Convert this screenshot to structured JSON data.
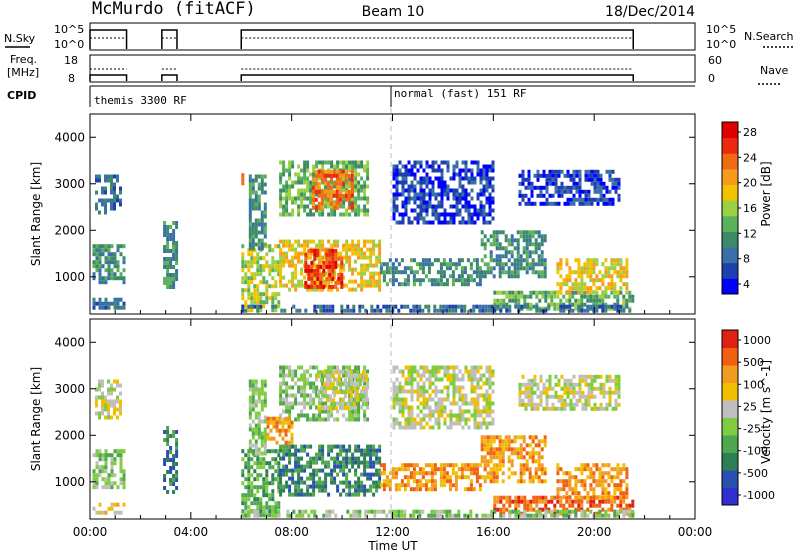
{
  "header": {
    "radar": "McMurdo (fitACF)",
    "beam": "Beam 10",
    "date": "18/Dec/2014"
  },
  "labels": {
    "nsky": "N.Sky",
    "nsearch": "N.Search",
    "freq_line1": "Freq.",
    "freq_line2": "[MHz]",
    "nave": "Nave",
    "cpid": "CPID",
    "mode1": "themis 3300 RF",
    "mode2": "normal (fast) 151 RF",
    "xlabel": "Time UT"
  },
  "noise_axis": {
    "left_top": "10^5",
    "left_bottom": "10^0",
    "right_top": "10^5",
    "right_bottom": "10^0"
  },
  "freq_axis": {
    "left_ticks": [
      "18",
      "8"
    ],
    "right_ticks": [
      "60",
      "0"
    ]
  },
  "colors": {
    "power": [
      "#0000ff",
      "#1f3fb0",
      "#3a70a8",
      "#3d8a6a",
      "#5bb05b",
      "#9cd043",
      "#f2c200",
      "#f79b1a",
      "#f26a14",
      "#ec2a10",
      "#e00000"
    ],
    "velocity": [
      "#3030d0",
      "#2850b0",
      "#2e7f55",
      "#4ea74e",
      "#7fcc40",
      "#bfbfbf",
      "#f0c000",
      "#f39a20",
      "#f06010",
      "#e02010"
    ]
  },
  "chart_data": [
    {
      "type": "heatmap",
      "ylabel": "Slant Range [km]",
      "xlabel": "Time UT",
      "xlim_hours": [
        0,
        24
      ],
      "ylim": [
        200,
        4500
      ],
      "x_ticks": [
        "00:00",
        "04:00",
        "08:00",
        "12:00",
        "16:00",
        "20:00",
        "00:00"
      ],
      "y_ticks": [
        1000,
        2000,
        3000,
        4000
      ],
      "colorbar_label": "Power [dB]",
      "colorbar_ticks": [
        "28",
        "24",
        "20",
        "16",
        "12",
        "8",
        "4"
      ],
      "regions": [
        {
          "t0": 0.1,
          "t1": 1.4,
          "r0": 900,
          "r1": 1700,
          "level": 3
        },
        {
          "t0": 0.1,
          "t1": 1.4,
          "r0": 300,
          "r1": 550,
          "level": 2
        },
        {
          "t0": 0.2,
          "t1": 1.2,
          "r0": 2400,
          "r1": 3200,
          "level": 2
        },
        {
          "t0": 2.9,
          "t1": 3.4,
          "r0": 800,
          "r1": 2200,
          "level": 3
        },
        {
          "t0": 6.0,
          "t1": 7.5,
          "r0": 300,
          "r1": 1700,
          "level": 5
        },
        {
          "t0": 6.0,
          "t1": 6.1,
          "r0": 2900,
          "r1": 3400,
          "level": 9
        },
        {
          "t0": 6.3,
          "t1": 7.0,
          "r0": 1600,
          "r1": 3200,
          "level": 3
        },
        {
          "t0": 7.5,
          "t1": 11.5,
          "r0": 700,
          "r1": 1800,
          "level": 6
        },
        {
          "t0": 8.5,
          "t1": 10.0,
          "r0": 800,
          "r1": 1600,
          "level": 9
        },
        {
          "t0": 7.5,
          "t1": 11.0,
          "r0": 2300,
          "r1": 3500,
          "level": 4
        },
        {
          "t0": 8.8,
          "t1": 10.4,
          "r0": 2500,
          "r1": 3300,
          "level": 8
        },
        {
          "t0": 11.5,
          "t1": 15.5,
          "r0": 800,
          "r1": 1400,
          "level": 3
        },
        {
          "t0": 12.0,
          "t1": 16.0,
          "r0": 2200,
          "r1": 3500,
          "level": 1
        },
        {
          "t0": 15.5,
          "t1": 18.0,
          "r0": 1000,
          "r1": 2000,
          "level": 3
        },
        {
          "t0": 16.0,
          "t1": 21.5,
          "r0": 300,
          "r1": 700,
          "level": 4
        },
        {
          "t0": 18.5,
          "t1": 21.3,
          "r0": 700,
          "r1": 1400,
          "level": 6
        },
        {
          "t0": 17.0,
          "t1": 21.0,
          "r0": 2600,
          "r1": 3300,
          "level": 1
        },
        {
          "t0": 6.0,
          "t1": 21.5,
          "r0": 250,
          "r1": 400,
          "level": 2
        }
      ]
    },
    {
      "type": "heatmap",
      "ylabel": "Slant Range [km]",
      "xlabel": "Time UT",
      "xlim_hours": [
        0,
        24
      ],
      "ylim": [
        200,
        4500
      ],
      "x_ticks": [
        "00:00",
        "04:00",
        "08:00",
        "12:00",
        "16:00",
        "20:00",
        "00:00"
      ],
      "y_ticks": [
        1000,
        2000,
        3000,
        4000
      ],
      "colorbar_label": "Velocity [m s^-1]",
      "colorbar_ticks": [
        "1000",
        "500",
        "100",
        "25",
        "-25",
        "-100",
        "-500",
        "-1000"
      ],
      "regions": [
        {
          "t0": 0.1,
          "t1": 1.4,
          "r0": 900,
          "r1": 1700,
          "level": 4
        },
        {
          "t0": 0.1,
          "t1": 1.4,
          "r0": 300,
          "r1": 550,
          "level": 6
        },
        {
          "t0": 0.2,
          "t1": 1.2,
          "r0": 2400,
          "r1": 3200,
          "level": 5
        },
        {
          "t0": 2.9,
          "t1": 3.4,
          "r0": 800,
          "r1": 2200,
          "level": 2
        },
        {
          "t0": 6.0,
          "t1": 7.5,
          "r0": 300,
          "r1": 1700,
          "level": 3
        },
        {
          "t0": 6.3,
          "t1": 7.0,
          "r0": 1600,
          "r1": 3200,
          "level": 4
        },
        {
          "t0": 7.5,
          "t1": 11.5,
          "r0": 700,
          "r1": 1800,
          "level": 2
        },
        {
          "t0": 7.5,
          "t1": 11.0,
          "r0": 2300,
          "r1": 3500,
          "level": 4
        },
        {
          "t0": 9.0,
          "t1": 11.0,
          "r0": 2600,
          "r1": 3400,
          "level": 5
        },
        {
          "t0": 11.5,
          "t1": 15.5,
          "r0": 800,
          "r1": 1400,
          "level": 7
        },
        {
          "t0": 12.0,
          "t1": 16.0,
          "r0": 2200,
          "r1": 3500,
          "level": 5
        },
        {
          "t0": 15.5,
          "t1": 18.0,
          "r0": 1000,
          "r1": 2000,
          "level": 7
        },
        {
          "t0": 16.0,
          "t1": 21.5,
          "r0": 300,
          "r1": 700,
          "level": 8
        },
        {
          "t0": 18.5,
          "t1": 21.3,
          "r0": 700,
          "r1": 1400,
          "level": 7
        },
        {
          "t0": 7.0,
          "t1": 8.0,
          "r0": 1800,
          "r1": 2400,
          "level": 7
        },
        {
          "t0": 17.0,
          "t1": 21.0,
          "r0": 2600,
          "r1": 3300,
          "level": 5
        },
        {
          "t0": 6.0,
          "t1": 21.5,
          "r0": 250,
          "r1": 400,
          "level": 4
        }
      ]
    }
  ]
}
